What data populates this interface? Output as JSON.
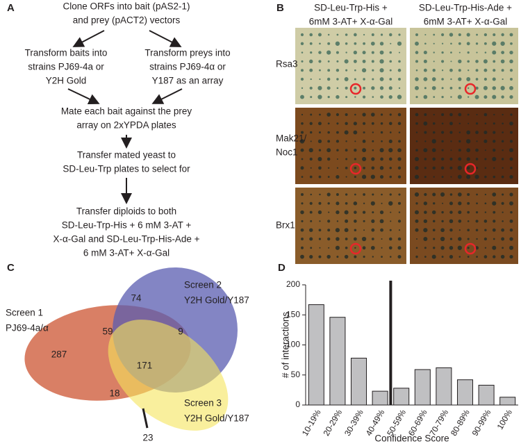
{
  "panel_a": {
    "letter": "A",
    "start": [
      "Clone ORFs into bait (pAS2-1)",
      "and prey (pACT2) vectors"
    ],
    "bait": [
      "Transform baits into",
      "strains PJ69-4a or",
      "Y2H Gold"
    ],
    "prey": [
      "Transform preys into",
      "strains PJ69-4α or",
      "Y187 as an array"
    ],
    "mate": [
      "Mate each bait against the prey",
      "array on 2xYPDA plates"
    ],
    "transfer": [
      "Transfer mated yeast to",
      "SD-Leu-Trp plates to select for"
    ],
    "diploids": [
      "Transfer diploids to both",
      "SD-Leu-Trp-His + 6 mM 3-AT +",
      "X-α-Gal and SD-Leu-Trp-His-Ade +",
      "6 mM 3-AT+ X-α-Gal"
    ]
  },
  "panel_b": {
    "letter": "B",
    "columns": [
      [
        "SD-Leu-Trp-His +",
        "6mM 3-AT+ X-α-Gal"
      ],
      [
        "SD-Leu-Trp-His-Ade +",
        "6mM 3-AT+ X-α-Gal"
      ]
    ],
    "rows": [
      [
        "Rsa3"
      ],
      [
        "Mak21/",
        "Noc1"
      ],
      [
        "Brx1"
      ]
    ]
  },
  "panel_c": {
    "letter": "C",
    "screen_1": [
      "Screen 1",
      "PJ69-4a/α"
    ],
    "screen_2": [
      "Screen 2",
      "Y2H Gold/Y187"
    ],
    "screen_3": [
      "Screen 3",
      "Y2H Gold/Y187"
    ],
    "counts": {
      "only_2": 74,
      "s1_s2": 59,
      "s2_s3": 9,
      "only_1": 287,
      "all": 171,
      "s1_s3": 18,
      "only_3": 23
    }
  },
  "chart_data": {
    "type": "bar",
    "panel_letter": "D",
    "categories": [
      "10-19%",
      "20-29%",
      "30-39%",
      "40-49%",
      "50-59%",
      "60-69%",
      "70-79%",
      "80-89%",
      "90-99%",
      "100%"
    ],
    "values": [
      167,
      146,
      78,
      23,
      28,
      59,
      62,
      42,
      33,
      13
    ],
    "color": "#c0c0c2",
    "ylim": [
      0,
      200
    ],
    "yticks": [
      0,
      50,
      100,
      150,
      200
    ],
    "x_label": "Confidence Score",
    "y_label": "# of interactions"
  }
}
